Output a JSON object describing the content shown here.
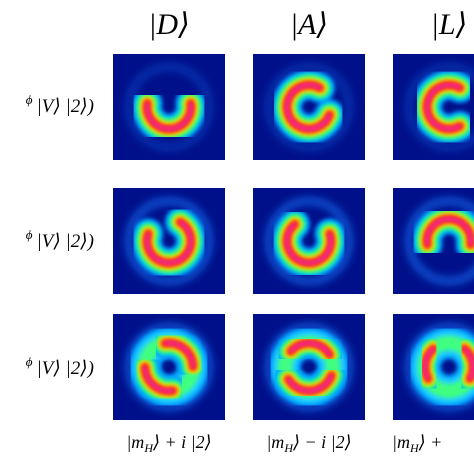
{
  "column_headers": [
    "|D⟩",
    "|A⟩",
    "|L⟩"
  ],
  "row_labels": [
    {
      "sup": "ϕ",
      "text": "|V⟩ |2⟩)"
    },
    {
      "sup": "ϕ",
      "text": "|V⟩ |2⟩)"
    },
    {
      "sup": "ϕ",
      "text": "|V⟩ |2⟩)"
    }
  ],
  "bottom_labels": [
    {
      "prefix": "|m",
      "sub": "H",
      "suffix": "⟩ + i |2⟩"
    },
    {
      "prefix": "|m",
      "sub": "H",
      "suffix": "⟩ − i |2⟩"
    },
    {
      "prefix": "|m",
      "sub": "H",
      "suffix": "⟩ +"
    }
  ]
}
